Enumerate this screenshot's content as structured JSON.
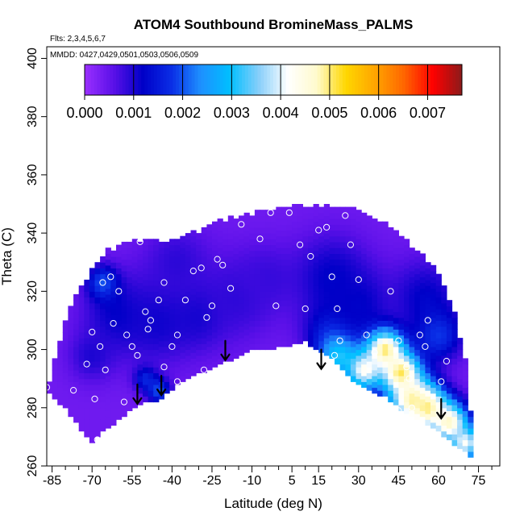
{
  "chart_data": {
    "type": "heatmap",
    "title": "ATOM4 Southbound BromineMass_PALMS",
    "annotations": [
      "Flts: 2,3,4,5,6,7",
      "MMDD: 0427,0429,0501,0503,0506,0509"
    ],
    "xlabel": "Latitude (deg N)",
    "ylabel": "Theta (C)",
    "xlim": [
      -87,
      83
    ],
    "ylim": [
      260,
      404
    ],
    "x_ticks": [
      -85,
      -70,
      -55,
      -40,
      -25,
      -10,
      5,
      15,
      30,
      45,
      60,
      75
    ],
    "x_tick_labels": [
      "-85",
      "-70",
      "-55",
      "-40",
      "-25",
      "-10",
      "5",
      "15",
      "30",
      "45",
      "60",
      "75"
    ],
    "x_minor_step": 5,
    "y_ticks": [
      260,
      280,
      300,
      320,
      340,
      360,
      380,
      400
    ],
    "y_tick_labels": [
      "260",
      "280",
      "300",
      "320",
      "340",
      "360",
      "380",
      "400"
    ],
    "grid": false,
    "colorbar": {
      "placement": "top-inside",
      "range": [
        0,
        0.0077
      ],
      "ticks": [
        0.0,
        0.001,
        0.002,
        0.003,
        0.004,
        0.005,
        0.006,
        0.007
      ],
      "tick_labels": [
        "0.000",
        "0.001",
        "0.002",
        "0.003",
        "0.004",
        "0.005",
        "0.006",
        "0.007"
      ],
      "colors": [
        "#9b30ff",
        "#5a10e8",
        "#0000c8",
        "#0a2ee6",
        "#1e90ff",
        "#00bfff",
        "#87cefa",
        "#ffffff",
        "#fffacd",
        "#ffd700",
        "#ffa500",
        "#ff6600",
        "#ff0000",
        "#8b1a1a"
      ]
    },
    "domain_top": [
      [
        -87,
        284
      ],
      [
        -80,
        310
      ],
      [
        -75,
        320
      ],
      [
        -65,
        333
      ],
      [
        -52,
        337
      ],
      [
        -40,
        337
      ],
      [
        -30,
        340
      ],
      [
        -20,
        344
      ],
      [
        -10,
        346
      ],
      [
        0,
        348
      ],
      [
        10,
        349
      ],
      [
        20,
        348
      ],
      [
        30,
        347
      ],
      [
        40,
        343
      ],
      [
        50,
        335
      ],
      [
        60,
        326
      ],
      [
        66,
        312
      ],
      [
        70,
        296
      ],
      [
        73,
        270
      ],
      [
        73,
        263
      ]
    ],
    "domain_bottom": [
      [
        -87,
        286
      ],
      [
        -85,
        284
      ],
      [
        -80,
        280
      ],
      [
        -70,
        268
      ],
      [
        -67,
        272
      ],
      [
        -60,
        276
      ],
      [
        -55,
        280
      ],
      [
        -50,
        282
      ],
      [
        -45,
        283
      ],
      [
        -38,
        288
      ],
      [
        -30,
        292
      ],
      [
        -20,
        296
      ],
      [
        -10,
        300
      ],
      [
        0,
        301
      ],
      [
        10,
        303
      ],
      [
        20,
        297
      ],
      [
        30,
        288
      ],
      [
        40,
        284
      ],
      [
        50,
        277
      ],
      [
        60,
        272
      ],
      [
        70,
        265
      ],
      [
        73,
        263
      ]
    ],
    "features": [
      {
        "name": "bg",
        "value": 0.0004,
        "radius": 0
      },
      {
        "x": -60,
        "y": 312,
        "value": 0.0012,
        "radius": 9
      },
      {
        "x": -45,
        "y": 310,
        "value": 0.0011,
        "radius": 10
      },
      {
        "x": -30,
        "y": 312,
        "value": 0.0011,
        "radius": 8
      },
      {
        "x": -15,
        "y": 318,
        "value": 0.0009,
        "radius": 10
      },
      {
        "x": -5,
        "y": 325,
        "value": 0.0008,
        "radius": 8
      },
      {
        "x": -38,
        "y": 330,
        "value": 0.0009,
        "radius": 9
      },
      {
        "x": -66,
        "y": 323,
        "value": 0.002,
        "radius": 4
      },
      {
        "x": -70,
        "y": 298,
        "value": 0.001,
        "radius": 6
      },
      {
        "x": 20,
        "y": 325,
        "value": 0.0012,
        "radius": 10
      },
      {
        "x": 20,
        "y": 306,
        "value": 0.0016,
        "radius": 7
      },
      {
        "x": 30,
        "y": 316,
        "value": 0.0012,
        "radius": 8
      },
      {
        "x": 55,
        "y": 318,
        "value": 0.0012,
        "radius": 9
      },
      {
        "x": 60,
        "y": 305,
        "value": 0.0018,
        "radius": 6
      },
      {
        "x": 22,
        "y": 298,
        "value": 0.003,
        "radius": 5
      },
      {
        "x": 32,
        "y": 293,
        "value": 0.0042,
        "radius": 5
      },
      {
        "x": 40,
        "y": 300,
        "value": 0.005,
        "radius": 5
      },
      {
        "x": 46,
        "y": 292,
        "value": 0.0052,
        "radius": 5
      },
      {
        "x": 50,
        "y": 283,
        "value": 0.0048,
        "radius": 6
      },
      {
        "x": 56,
        "y": 280,
        "value": 0.005,
        "radius": 5
      },
      {
        "x": 64,
        "y": 275,
        "value": 0.0048,
        "radius": 5
      },
      {
        "x": 70,
        "y": 268,
        "value": 0.0042,
        "radius": 4
      },
      {
        "x": -50,
        "y": 290,
        "value": 0.0016,
        "radius": 3
      },
      {
        "x": -45,
        "y": 286,
        "value": 0.002,
        "radius": 3
      }
    ],
    "sample_points": [
      [
        -87,
        287
      ],
      [
        -77,
        286
      ],
      [
        -72,
        295
      ],
      [
        -70,
        306
      ],
      [
        -67,
        301
      ],
      [
        -66,
        323
      ],
      [
        -63,
        325
      ],
      [
        -60,
        320
      ],
      [
        -62,
        309
      ],
      [
        -57,
        305
      ],
      [
        -55,
        301
      ],
      [
        -52,
        337
      ],
      [
        -50,
        313
      ],
      [
        -49,
        307
      ],
      [
        -48,
        310
      ],
      [
        -45,
        317
      ],
      [
        -43,
        323
      ],
      [
        -40,
        301
      ],
      [
        -38,
        305
      ],
      [
        -35,
        317
      ],
      [
        -32,
        327
      ],
      [
        -29,
        328
      ],
      [
        -27,
        311
      ],
      [
        -25,
        315
      ],
      [
        -23,
        331
      ],
      [
        -21,
        329
      ],
      [
        -18,
        321
      ],
      [
        -14,
        343
      ],
      [
        -7,
        338
      ],
      [
        -3,
        347
      ],
      [
        -1,
        315
      ],
      [
        4,
        347
      ],
      [
        8,
        336
      ],
      [
        10,
        314
      ],
      [
        12,
        332
      ],
      [
        15,
        341
      ],
      [
        18,
        342
      ],
      [
        20,
        325
      ],
      [
        22,
        314
      ],
      [
        25,
        346
      ],
      [
        27,
        336
      ],
      [
        30,
        324
      ],
      [
        33,
        305
      ],
      [
        36,
        299
      ],
      [
        42,
        320
      ],
      [
        45,
        303
      ],
      [
        49,
        290
      ],
      [
        50,
        280
      ],
      [
        53,
        305
      ],
      [
        56,
        310
      ],
      [
        63,
        296
      ],
      [
        61,
        289
      ],
      [
        -58,
        282
      ],
      [
        -55,
        276
      ],
      [
        -68,
        269
      ],
      [
        -69,
        283
      ],
      [
        -65,
        293
      ],
      [
        -53,
        298
      ],
      [
        -43,
        294
      ],
      [
        -38,
        289
      ],
      [
        -36,
        281
      ],
      [
        -31,
        284
      ],
      [
        -28,
        293
      ],
      [
        -20,
        287
      ],
      [
        21,
        298
      ],
      [
        23,
        303
      ],
      [
        45,
        279
      ],
      [
        48,
        294
      ],
      [
        55,
        301
      ]
    ],
    "arrows": [
      [
        -53,
        288
      ],
      [
        -44,
        291
      ],
      [
        -20,
        303
      ],
      [
        16,
        300
      ],
      [
        61,
        283
      ]
    ]
  }
}
